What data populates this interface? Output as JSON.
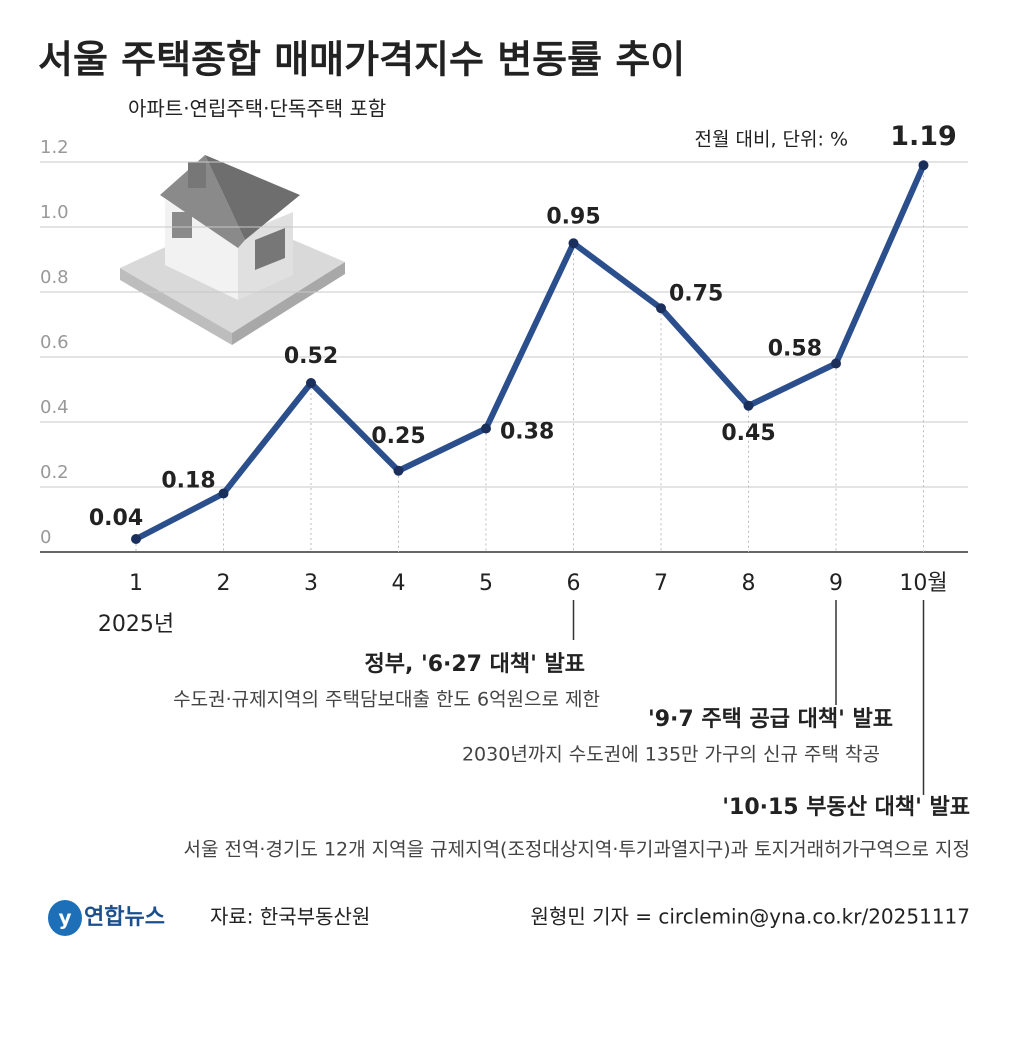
{
  "chart_data": {
    "type": "line",
    "title": "서울 주택종합 매매가격지수 변동률 추이",
    "subtitle": "아파트·연립주택·단독주택 포함",
    "unit_note": "전월 대비, 단위: %",
    "categories": [
      "1",
      "2",
      "3",
      "4",
      "5",
      "6",
      "7",
      "8",
      "9",
      "10월"
    ],
    "year_label": "2025년",
    "series": [
      {
        "name": "변동률",
        "color": "#2b4e8c",
        "values": [
          0.04,
          0.18,
          0.52,
          0.25,
          0.38,
          0.95,
          0.75,
          0.45,
          0.58,
          1.19
        ]
      }
    ],
    "ylim": [
      0,
      1.2
    ],
    "yticks": [
      0,
      0.2,
      0.4,
      0.6,
      0.8,
      {
        "value": 1.0,
        "label": "1.0"
      },
      1.2
    ],
    "grid": true,
    "annotations": [
      {
        "title": "정부, '6·27 대책' 발표",
        "text": "수도권·규제지역의 주택담보대출 한도 6억원으로 제한"
      },
      {
        "title": "'9·7 주택 공급 대책' 발표",
        "text": "2030년까지 수도권에 135만 가구의 신규 주택 착공"
      },
      {
        "title": "'10·15 부동산 대책' 발표",
        "text": "서울 전역·경기도 12개 지역을 규제지역(조정대상지역·투기과열지구)과 토지거래허가구역으로 지정"
      }
    ],
    "logo": "연합뉴스",
    "source": "자료: 한국부동산원",
    "credit": "원형민 기자 = circlemin@yna.co.kr/20251117"
  }
}
